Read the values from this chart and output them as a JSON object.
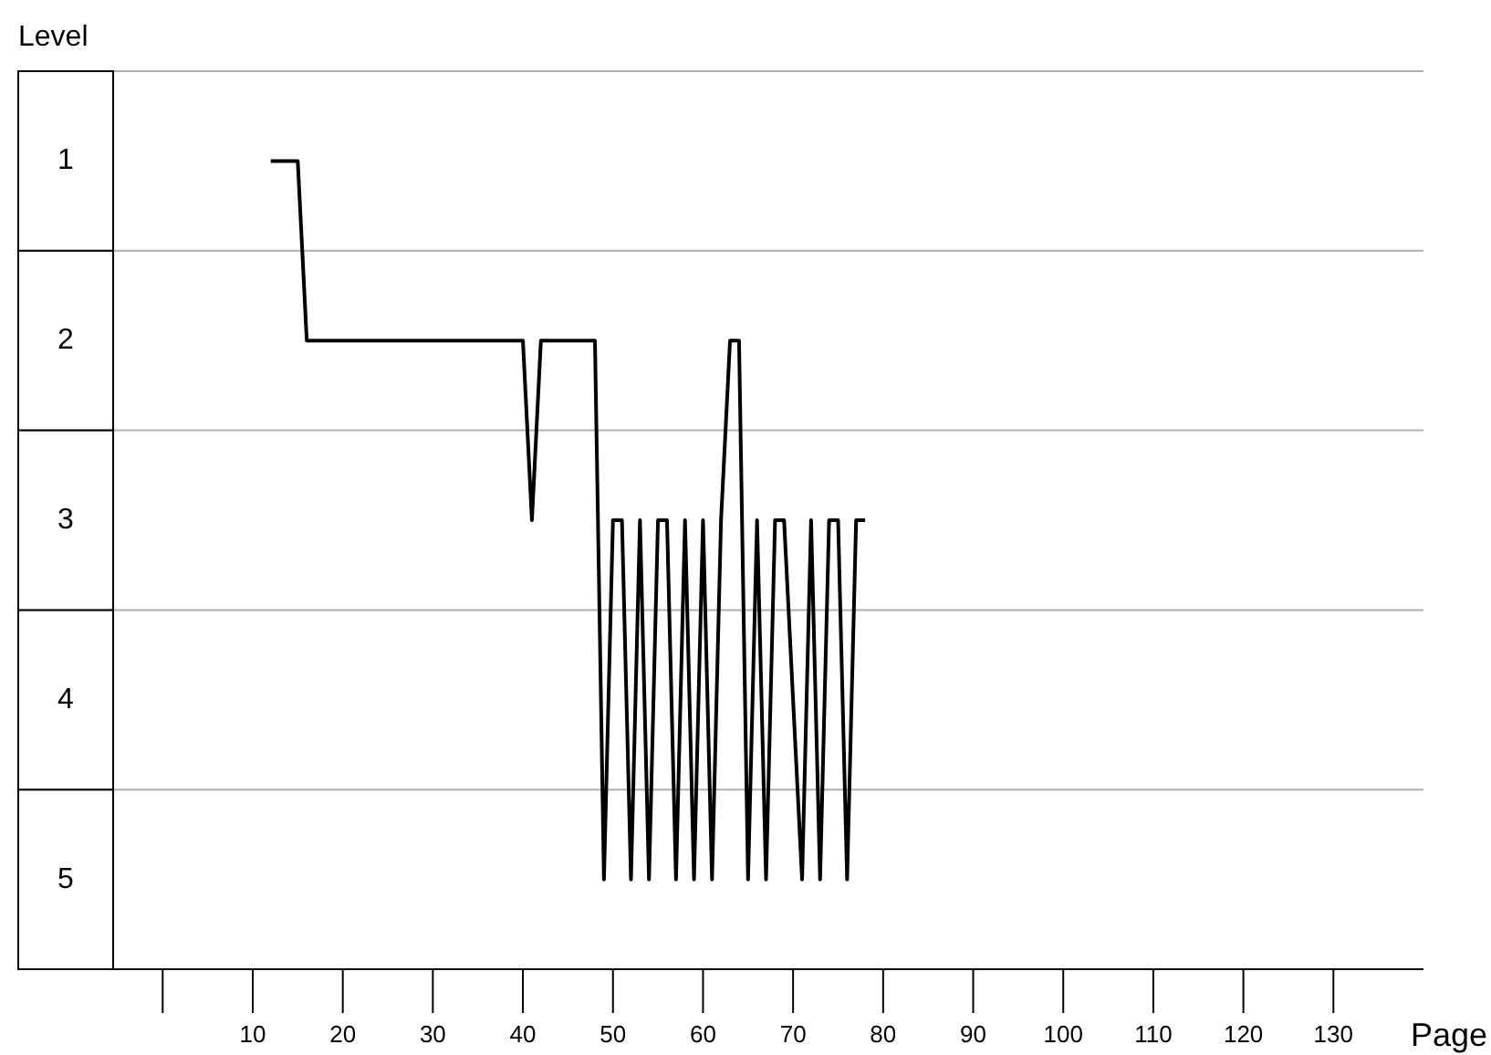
{
  "chart_data": {
    "type": "line",
    "xlabel": "Page",
    "ylabel": "Level",
    "x": [
      12,
      15,
      16,
      40,
      41,
      42,
      48,
      49,
      50,
      51,
      52,
      53,
      54,
      55,
      56,
      57,
      58,
      59,
      60,
      61,
      62,
      63,
      64,
      65,
      66,
      67,
      68,
      69,
      71,
      72,
      73,
      74,
      75,
      76,
      77,
      78
    ],
    "values": [
      1,
      1,
      2,
      2,
      3,
      2,
      2,
      5,
      3,
      3,
      5,
      3,
      5,
      3,
      3,
      5,
      3,
      5,
      3,
      5,
      3,
      2,
      2,
      5,
      3,
      5,
      3,
      3,
      5,
      3,
      5,
      3,
      3,
      5,
      3,
      3
    ],
    "color": "#000000",
    "xlim": [
      -5.5,
      140
    ],
    "xticks": [
      {
        "value": 0,
        "label": null
      },
      10,
      20,
      30,
      40,
      50,
      60,
      70,
      80,
      90,
      100,
      110,
      120,
      130
    ],
    "ylim": [
      5.5,
      0.5
    ],
    "yticks": [
      {
        "value": 0.5,
        "label": null
      },
      1,
      {
        "value": 1.5,
        "label": null
      },
      2,
      {
        "value": 2.5,
        "label": null
      },
      3,
      {
        "value": 3.5,
        "label": null
      },
      4,
      {
        "value": 4.5,
        "label": null
      },
      5,
      {
        "value": 5.5,
        "label": null
      }
    ],
    "grid": "y",
    "marker": "none",
    "line_style": "solid"
  }
}
